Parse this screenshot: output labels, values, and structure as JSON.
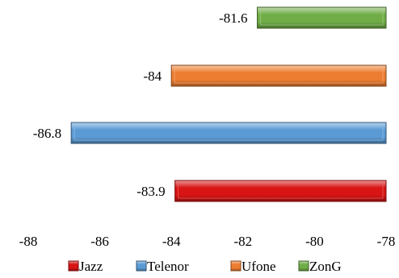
{
  "chart_data": {
    "type": "bar",
    "orientation": "horizontal",
    "categories": [
      "Jazz",
      "Telenor",
      "Ufone",
      "ZonG"
    ],
    "values": [
      -83.9,
      -86.8,
      -84,
      -81.6
    ],
    "data_labels": [
      "-83.9",
      "-86.8",
      "-84",
      "-81.6"
    ],
    "colors": [
      "#d81414",
      "#5b9bd5",
      "#ed7d31",
      "#70ad47"
    ],
    "xlim": [
      -88,
      -78
    ],
    "xticks": [
      "-88",
      "-86",
      "-84",
      "-82",
      "-80",
      "-78"
    ],
    "grid": false,
    "legend_position": "bottom",
    "title": "",
    "xlabel": "",
    "ylabel": ""
  }
}
